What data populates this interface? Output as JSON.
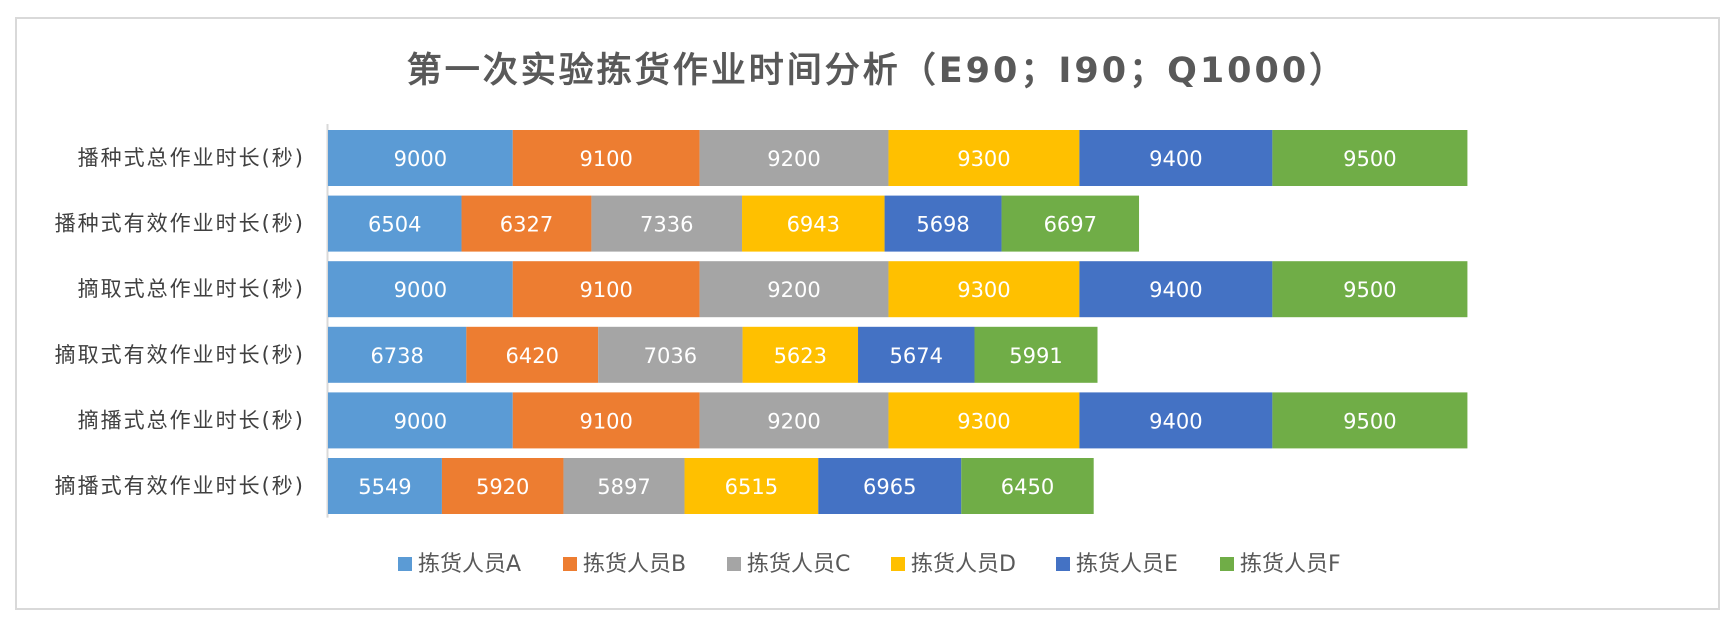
{
  "chart_data": {
    "type": "bar",
    "orientation": "horizontal",
    "stacked": true,
    "title": "第一次实验拣货作业时间分析（E90；I90；Q1000）",
    "categories": [
      "播种式总作业时长(秒)",
      "播种式有效作业时长(秒)",
      "摘取式总作业时长(秒)",
      "摘取式有效作业时长(秒)",
      "摘播式总作业时长(秒)",
      "摘播式有效作业时长(秒)"
    ],
    "series": [
      {
        "name": "拣货人员A",
        "color": "#5B9BD5",
        "values": [
          9000,
          6504,
          9000,
          6738,
          9000,
          5549
        ]
      },
      {
        "name": "拣货人员B",
        "color": "#ED7D31",
        "values": [
          9100,
          6327,
          9100,
          6420,
          9100,
          5920
        ]
      },
      {
        "name": "拣货人员C",
        "color": "#A5A5A5",
        "values": [
          9200,
          7336,
          9200,
          7036,
          9200,
          5897
        ]
      },
      {
        "name": "拣货人员D",
        "color": "#FFC000",
        "values": [
          9300,
          6943,
          9300,
          5623,
          9300,
          6515
        ]
      },
      {
        "name": "拣货人员E",
        "color": "#4472C4",
        "values": [
          9400,
          5698,
          9400,
          5674,
          9400,
          6965
        ]
      },
      {
        "name": "拣货人员F",
        "color": "#70AD47",
        "values": [
          9500,
          6697,
          9500,
          5991,
          9500,
          6450
        ]
      }
    ],
    "xlabel": "",
    "ylabel": "",
    "xlim": [
      0,
      56000
    ],
    "grid": false,
    "legend": "bottom",
    "data_labels": true
  }
}
